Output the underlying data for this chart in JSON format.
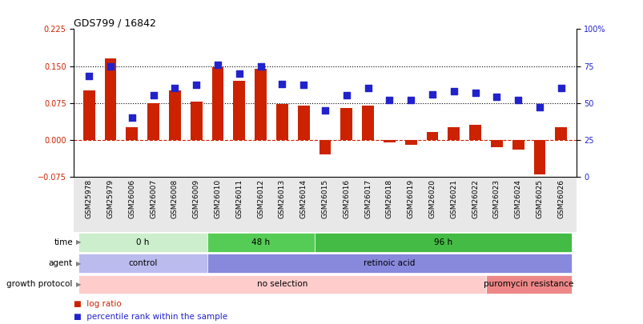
{
  "title": "GDS799 / 16842",
  "samples": [
    "GSM25978",
    "GSM25979",
    "GSM26006",
    "GSM26007",
    "GSM26008",
    "GSM26009",
    "GSM26010",
    "GSM26011",
    "GSM26012",
    "GSM26013",
    "GSM26014",
    "GSM26015",
    "GSM26016",
    "GSM26017",
    "GSM26018",
    "GSM26019",
    "GSM26020",
    "GSM26021",
    "GSM26022",
    "GSM26023",
    "GSM26024",
    "GSM26025",
    "GSM26026"
  ],
  "log_ratio": [
    0.1,
    0.165,
    0.025,
    0.075,
    0.1,
    0.078,
    0.148,
    0.12,
    0.145,
    0.072,
    0.07,
    -0.03,
    0.065,
    0.07,
    -0.005,
    -0.01,
    0.015,
    0.025,
    0.03,
    -0.015,
    -0.02,
    -0.07,
    0.025
  ],
  "percentile_rank": [
    68,
    75,
    40,
    55,
    60,
    62,
    76,
    70,
    75,
    63,
    62,
    45,
    55,
    60,
    52,
    52,
    56,
    58,
    57,
    54,
    52,
    47,
    60
  ],
  "ylim_left": [
    -0.075,
    0.225
  ],
  "ylim_right": [
    0,
    100
  ],
  "yticks_left": [
    -0.075,
    0,
    0.075,
    0.15,
    0.225
  ],
  "yticks_right": [
    0,
    25,
    50,
    75,
    100
  ],
  "hlines": [
    0.075,
    0.15
  ],
  "bar_color": "#cc2200",
  "dot_color": "#2222cc",
  "zero_line_color": "#cc2200",
  "time_groups": [
    {
      "label": "0 h",
      "start": 0,
      "end": 6,
      "color": "#cceecc"
    },
    {
      "label": "48 h",
      "start": 6,
      "end": 11,
      "color": "#55cc55"
    },
    {
      "label": "96 h",
      "start": 11,
      "end": 23,
      "color": "#44bb44"
    }
  ],
  "agent_groups": [
    {
      "label": "control",
      "start": 0,
      "end": 6,
      "color": "#bbbbee"
    },
    {
      "label": "retinoic acid",
      "start": 6,
      "end": 23,
      "color": "#8888dd"
    }
  ],
  "growth_groups": [
    {
      "label": "no selection",
      "start": 0,
      "end": 19,
      "color": "#ffcccc"
    },
    {
      "label": "puromycin resistance",
      "start": 19,
      "end": 23,
      "color": "#ee8888"
    }
  ],
  "bg_color": "#e8e8e8"
}
